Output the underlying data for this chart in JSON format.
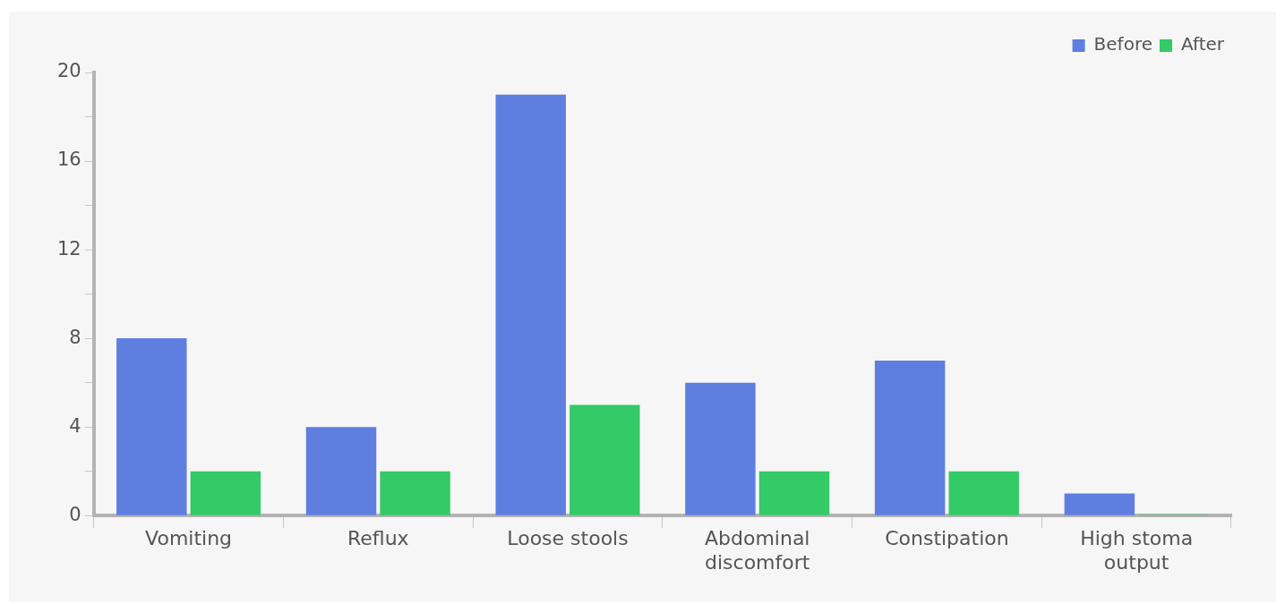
{
  "chart_data": {
    "type": "bar",
    "categories": [
      "Vomiting",
      "Reflux",
      "Loose stools",
      "Abdominal discomfort",
      "Constipation",
      "High stoma output"
    ],
    "series": [
      {
        "name": "Before",
        "color": "#5e7ee0",
        "values": [
          8,
          4,
          19,
          6,
          7,
          1
        ]
      },
      {
        "name": "After",
        "color": "#34ca67",
        "values": [
          2,
          2,
          5,
          2,
          2,
          0
        ]
      }
    ],
    "ylim": [
      0,
      20
    ],
    "yticks": [
      0,
      {
        "value": 2,
        "label": null
      },
      4,
      {
        "value": 6,
        "label": null
      },
      8,
      {
        "value": 10,
        "label": null
      },
      12,
      {
        "value": 14,
        "label": null
      },
      16,
      {
        "value": 18,
        "label": null
      },
      20
    ],
    "grid": false,
    "legend": "top right"
  }
}
